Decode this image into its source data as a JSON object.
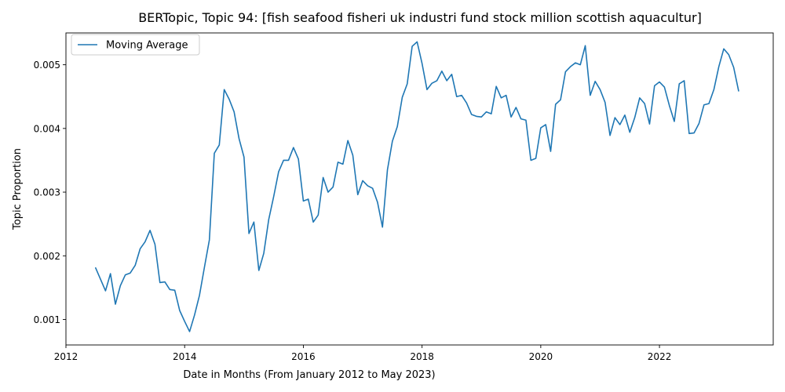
{
  "chart_data": {
    "type": "line",
    "title": "BERTopic, Topic 94: [fish seafood fisheri uk industri fund stock million scottish aquacultur]",
    "xlabel": "Date in Months (From January 2012 to May 2023)",
    "ylabel": "Topic Proportion",
    "xlim": [
      "2012-01",
      "2023-12"
    ],
    "ylim": [
      0.0006,
      0.0055
    ],
    "x_ticks": [
      {
        "value": "2012-01",
        "label": "2012"
      },
      {
        "value": "2014-01",
        "label": "2014"
      },
      {
        "value": "2016-01",
        "label": "2016"
      },
      {
        "value": "2018-01",
        "label": "2018"
      },
      {
        "value": "2020-01",
        "label": "2020"
      },
      {
        "value": "2022-01",
        "label": "2022"
      }
    ],
    "y_ticks": [
      {
        "value": 0.001,
        "label": "0.001"
      },
      {
        "value": 0.002,
        "label": "0.002"
      },
      {
        "value": 0.003,
        "label": "0.003"
      },
      {
        "value": 0.004,
        "label": "0.004"
      },
      {
        "value": 0.005,
        "label": "0.005"
      }
    ],
    "grid": false,
    "legend": {
      "position": "top-left"
    },
    "series": [
      {
        "name": "Moving Average",
        "color": "#1f77b4",
        "x": [
          "2012-07",
          "2012-08",
          "2012-09",
          "2012-10",
          "2012-11",
          "2012-12",
          "2013-01",
          "2013-02",
          "2013-03",
          "2013-04",
          "2013-05",
          "2013-06",
          "2013-07",
          "2013-08",
          "2013-09",
          "2013-10",
          "2013-11",
          "2013-12",
          "2014-01",
          "2014-02",
          "2014-03",
          "2014-04",
          "2014-05",
          "2014-06",
          "2014-07",
          "2014-08",
          "2014-09",
          "2014-10",
          "2014-11",
          "2014-12",
          "2015-01",
          "2015-02",
          "2015-03",
          "2015-04",
          "2015-05",
          "2015-06",
          "2015-07",
          "2015-08",
          "2015-09",
          "2015-10",
          "2015-11",
          "2015-12",
          "2016-01",
          "2016-02",
          "2016-03",
          "2016-04",
          "2016-05",
          "2016-06",
          "2016-07",
          "2016-08",
          "2016-09",
          "2016-10",
          "2016-11",
          "2016-12",
          "2017-01",
          "2017-02",
          "2017-03",
          "2017-04",
          "2017-05",
          "2017-06",
          "2017-07",
          "2017-08",
          "2017-09",
          "2017-10",
          "2017-11",
          "2017-12",
          "2018-01",
          "2018-02",
          "2018-03",
          "2018-04",
          "2018-05",
          "2018-06",
          "2018-07",
          "2018-08",
          "2018-09",
          "2018-10",
          "2018-11",
          "2018-12",
          "2019-01",
          "2019-02",
          "2019-03",
          "2019-04",
          "2019-05",
          "2019-06",
          "2019-07",
          "2019-08",
          "2019-09",
          "2019-10",
          "2019-11",
          "2019-12",
          "2020-01",
          "2020-02",
          "2020-03",
          "2020-04",
          "2020-05",
          "2020-06",
          "2020-07",
          "2020-08",
          "2020-09",
          "2020-10",
          "2020-11",
          "2020-12",
          "2021-01",
          "2021-02",
          "2021-03",
          "2021-04",
          "2021-05",
          "2021-06",
          "2021-07",
          "2021-08",
          "2021-09",
          "2021-10",
          "2021-11",
          "2021-12",
          "2022-01",
          "2022-02",
          "2022-03",
          "2022-04",
          "2022-05",
          "2022-06",
          "2022-07",
          "2022-08",
          "2022-09",
          "2022-10",
          "2022-11",
          "2022-12",
          "2023-01",
          "2023-02",
          "2023-03",
          "2023-04",
          "2023-05"
        ],
        "values": [
          0.00181,
          0.00163,
          0.00145,
          0.00172,
          0.00124,
          0.00153,
          0.0017,
          0.00173,
          0.00185,
          0.00211,
          0.00222,
          0.0024,
          0.00218,
          0.00158,
          0.00159,
          0.00147,
          0.00146,
          0.00114,
          0.00097,
          0.00081,
          0.00107,
          0.00138,
          0.00182,
          0.00225,
          0.00361,
          0.00374,
          0.00461,
          0.00446,
          0.00426,
          0.00384,
          0.00355,
          0.00235,
          0.00253,
          0.00177,
          0.00204,
          0.00257,
          0.00293,
          0.00332,
          0.0035,
          0.0035,
          0.0037,
          0.00352,
          0.00286,
          0.00289,
          0.00253,
          0.00264,
          0.00323,
          0.003,
          0.00308,
          0.00347,
          0.00344,
          0.00381,
          0.00358,
          0.00296,
          0.00318,
          0.0031,
          0.00306,
          0.00284,
          0.00245,
          0.00335,
          0.0038,
          0.00403,
          0.00449,
          0.0047,
          0.00529,
          0.00536,
          0.00502,
          0.00461,
          0.00471,
          0.00475,
          0.0049,
          0.00475,
          0.00485,
          0.0045,
          0.00452,
          0.0044,
          0.00422,
          0.00419,
          0.00418,
          0.00426,
          0.00423,
          0.00466,
          0.00448,
          0.00452,
          0.00418,
          0.00433,
          0.00415,
          0.00413,
          0.0035,
          0.00353,
          0.00401,
          0.00406,
          0.00364,
          0.00438,
          0.00445,
          0.00489,
          0.00497,
          0.00503,
          0.005,
          0.0053,
          0.00452,
          0.00474,
          0.00461,
          0.00441,
          0.00389,
          0.00417,
          0.00406,
          0.00421,
          0.00394,
          0.00417,
          0.00448,
          0.00439,
          0.00407,
          0.00467,
          0.00473,
          0.00465,
          0.00436,
          0.00411,
          0.0047,
          0.00475,
          0.00392,
          0.00393,
          0.00408,
          0.00437,
          0.00439,
          0.00461,
          0.00497,
          0.00525,
          0.00516,
          0.00496,
          0.00459
        ]
      }
    ]
  }
}
